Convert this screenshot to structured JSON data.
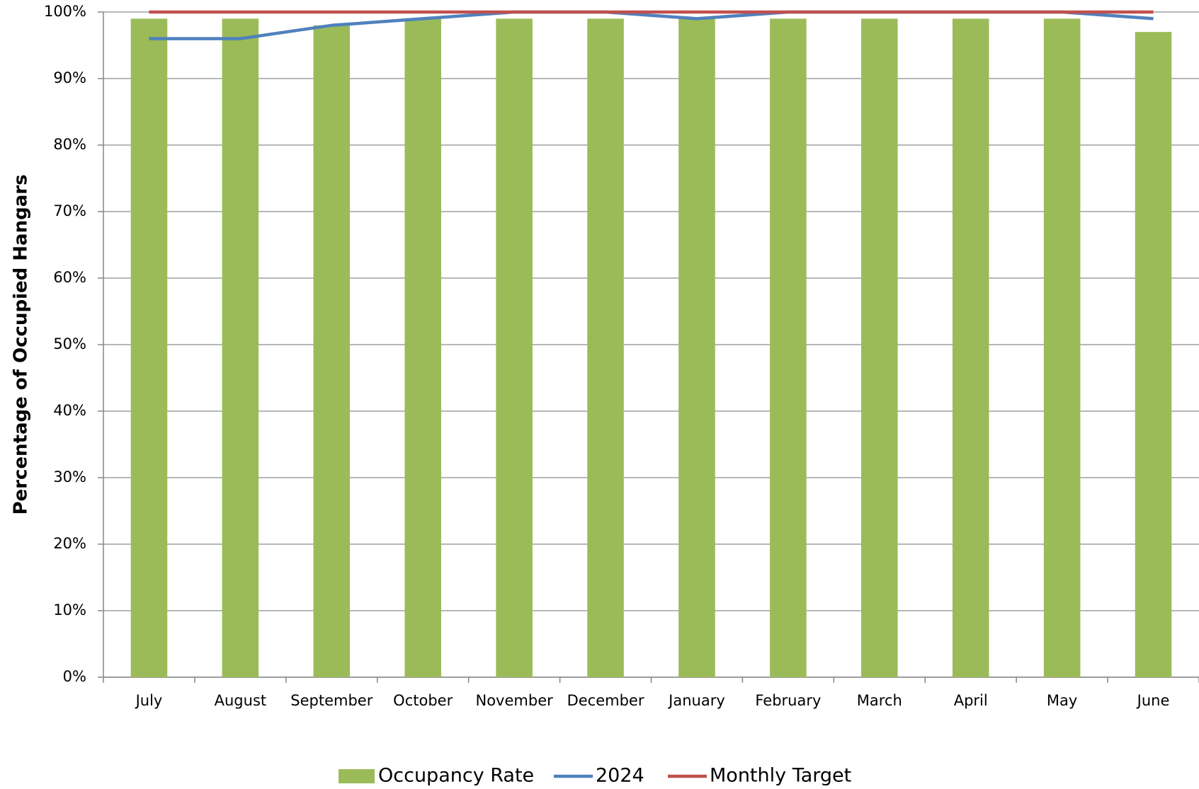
{
  "chart_data": {
    "type": "combo",
    "y_label": "Percentage of Occupied Hangars",
    "categories": [
      "July",
      "August",
      "September",
      "October",
      "November",
      "December",
      "January",
      "February",
      "March",
      "April",
      "May",
      "June"
    ],
    "series": [
      {
        "name": "Occupancy Rate",
        "type": "bar",
        "color": "#9bbb59",
        "values": [
          99,
          99,
          98,
          99,
          99,
          99,
          99,
          99,
          99,
          99,
          99,
          97
        ]
      },
      {
        "name": "2024",
        "type": "line",
        "color": "#4f81bd",
        "values": [
          96,
          96,
          98,
          99,
          100,
          100,
          99,
          100,
          100,
          100,
          100,
          99
        ]
      },
      {
        "name": "Monthly Target",
        "type": "line",
        "color": "#c0504d",
        "values": [
          100,
          100,
          100,
          100,
          100,
          100,
          100,
          100,
          100,
          100,
          100,
          100
        ]
      }
    ],
    "ylim": [
      0,
      100
    ],
    "yticks": [
      {
        "value": 0,
        "label": "0%"
      },
      {
        "value": 10,
        "label": "10%"
      },
      {
        "value": 20,
        "label": "20%"
      },
      {
        "value": 30,
        "label": "30%"
      },
      {
        "value": 40,
        "label": "40%"
      },
      {
        "value": 50,
        "label": "50%"
      },
      {
        "value": 60,
        "label": "60%"
      },
      {
        "value": 70,
        "label": "70%"
      },
      {
        "value": 80,
        "label": "80%"
      },
      {
        "value": 90,
        "label": "90%"
      },
      {
        "value": 100,
        "label": "100%"
      }
    ],
    "grid": true,
    "legend": "bottom"
  }
}
